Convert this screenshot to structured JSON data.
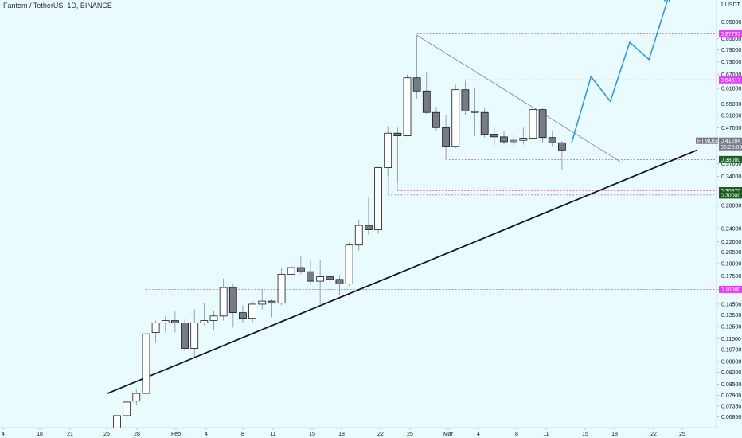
{
  "header": {
    "title": "Fantom / TetherUS, 1D, BINANCE"
  },
  "price_axis": {
    "currency": "1 USDT",
    "ticks": [
      "1.05000",
      "0.95000",
      "0.85000",
      "0.79000",
      "0.73000",
      "0.67000",
      "0.61000",
      "0.55000",
      "0.51000",
      "0.47000",
      "0.43000",
      "0.37000",
      "0.34000",
      "0.31000",
      "0.28000",
      "0.24000",
      "0.22000",
      "0.20500",
      "0.19000",
      "0.17500",
      "0.16000",
      "0.14500",
      "0.13500",
      "0.12500",
      "0.11500",
      "0.10700",
      "0.09900",
      "0.09200",
      "0.08500",
      "0.07900",
      "0.07350",
      "0.06850",
      "0.06370"
    ],
    "tags": [
      {
        "label": "0.87797",
        "color": "#e040fb"
      },
      {
        "label": "0.64617",
        "color": "#e040fb"
      },
      {
        "label": "FTMUSDT",
        "color": "#787b86"
      },
      {
        "label": "0.41284",
        "color": "#787b86"
      },
      {
        "label": "06:23:09",
        "color": "#787b86"
      },
      {
        "label": "0.38000",
        "color": "#1b5e20"
      },
      {
        "label": "0.30870",
        "color": "#1b5e20"
      },
      {
        "label": "0.30000",
        "color": "#1b5e20"
      },
      {
        "label": "0.16000",
        "color": "#e040fb"
      }
    ]
  },
  "time_axis": {
    "labels": [
      "4",
      "18",
      "21",
      "25",
      "28",
      "Feb",
      "4",
      "8",
      "11",
      "15",
      "18",
      "22",
      "25",
      "Mar",
      "4",
      "8",
      "11",
      "15",
      "18",
      "22",
      "25"
    ]
  },
  "chart_data": {
    "type": "candlestick",
    "symbol": "FTMUSDT",
    "exchange": "BINANCE",
    "interval": "1D",
    "y_scale": "log",
    "ylim": [
      0.0637,
      1.1
    ],
    "colors": {
      "up": "#ffffff",
      "down": "#787b86",
      "outline": "#131722"
    },
    "candles": [
      {
        "o": 0.0635,
        "h": 0.069,
        "l": 0.06,
        "c": 0.069
      },
      {
        "o": 0.069,
        "h": 0.0765,
        "l": 0.068,
        "c": 0.0755
      },
      {
        "o": 0.076,
        "h": 0.082,
        "l": 0.074,
        "c": 0.08
      },
      {
        "o": 0.08,
        "h": 0.12,
        "l": 0.079,
        "c": 0.119
      },
      {
        "o": 0.12,
        "h": 0.13,
        "l": 0.112,
        "c": 0.128
      },
      {
        "o": 0.128,
        "h": 0.134,
        "l": 0.12,
        "c": 0.13
      },
      {
        "o": 0.13,
        "h": 0.138,
        "l": 0.12,
        "c": 0.128
      },
      {
        "o": 0.128,
        "h": 0.131,
        "l": 0.106,
        "c": 0.108
      },
      {
        "o": 0.108,
        "h": 0.14,
        "l": 0.102,
        "c": 0.128
      },
      {
        "o": 0.128,
        "h": 0.146,
        "l": 0.126,
        "c": 0.13
      },
      {
        "o": 0.13,
        "h": 0.139,
        "l": 0.122,
        "c": 0.134
      },
      {
        "o": 0.134,
        "h": 0.172,
        "l": 0.13,
        "c": 0.162
      },
      {
        "o": 0.162,
        "h": 0.166,
        "l": 0.124,
        "c": 0.137
      },
      {
        "o": 0.137,
        "h": 0.144,
        "l": 0.128,
        "c": 0.132
      },
      {
        "o": 0.132,
        "h": 0.148,
        "l": 0.128,
        "c": 0.145
      },
      {
        "o": 0.145,
        "h": 0.16,
        "l": 0.14,
        "c": 0.148
      },
      {
        "o": 0.148,
        "h": 0.15,
        "l": 0.133,
        "c": 0.146
      },
      {
        "o": 0.146,
        "h": 0.184,
        "l": 0.144,
        "c": 0.177
      },
      {
        "o": 0.177,
        "h": 0.192,
        "l": 0.171,
        "c": 0.185
      },
      {
        "o": 0.185,
        "h": 0.2,
        "l": 0.177,
        "c": 0.18
      },
      {
        "o": 0.18,
        "h": 0.194,
        "l": 0.165,
        "c": 0.169
      },
      {
        "o": 0.169,
        "h": 0.195,
        "l": 0.145,
        "c": 0.174
      },
      {
        "o": 0.174,
        "h": 0.18,
        "l": 0.162,
        "c": 0.171
      },
      {
        "o": 0.171,
        "h": 0.176,
        "l": 0.154,
        "c": 0.166
      },
      {
        "o": 0.166,
        "h": 0.219,
        "l": 0.164,
        "c": 0.215
      },
      {
        "o": 0.215,
        "h": 0.255,
        "l": 0.207,
        "c": 0.245
      },
      {
        "o": 0.245,
        "h": 0.295,
        "l": 0.23,
        "c": 0.238
      },
      {
        "o": 0.238,
        "h": 0.365,
        "l": 0.232,
        "c": 0.36
      },
      {
        "o": 0.36,
        "h": 0.475,
        "l": 0.34,
        "c": 0.453
      },
      {
        "o": 0.453,
        "h": 0.47,
        "l": 0.325,
        "c": 0.445
      },
      {
        "o": 0.445,
        "h": 0.67,
        "l": 0.443,
        "c": 0.655
      },
      {
        "o": 0.655,
        "h": 0.87,
        "l": 0.57,
        "c": 0.6
      },
      {
        "o": 0.6,
        "h": 0.68,
        "l": 0.515,
        "c": 0.52
      },
      {
        "o": 0.52,
        "h": 0.54,
        "l": 0.46,
        "c": 0.47
      },
      {
        "o": 0.47,
        "h": 0.51,
        "l": 0.38,
        "c": 0.415
      },
      {
        "o": 0.415,
        "h": 0.625,
        "l": 0.41,
        "c": 0.605
      },
      {
        "o": 0.605,
        "h": 0.64,
        "l": 0.51,
        "c": 0.525
      },
      {
        "o": 0.525,
        "h": 0.615,
        "l": 0.445,
        "c": 0.52
      },
      {
        "o": 0.52,
        "h": 0.535,
        "l": 0.44,
        "c": 0.45
      },
      {
        "o": 0.45,
        "h": 0.47,
        "l": 0.415,
        "c": 0.442
      },
      {
        "o": 0.442,
        "h": 0.46,
        "l": 0.42,
        "c": 0.428
      },
      {
        "o": 0.428,
        "h": 0.45,
        "l": 0.415,
        "c": 0.432
      },
      {
        "o": 0.432,
        "h": 0.47,
        "l": 0.42,
        "c": 0.438
      },
      {
        "o": 0.438,
        "h": 0.56,
        "l": 0.435,
        "c": 0.53
      },
      {
        "o": 0.53,
        "h": 0.538,
        "l": 0.425,
        "c": 0.44
      },
      {
        "o": 0.44,
        "h": 0.46,
        "l": 0.415,
        "c": 0.425
      },
      {
        "o": 0.425,
        "h": 0.43,
        "l": 0.355,
        "c": 0.405
      }
    ],
    "support_trendline": {
      "from_candle": 0,
      "from_price": 0.08,
      "to_candle": 60,
      "to_price": 0.405
    },
    "resistance_trendline": {
      "from_candle": 31,
      "from_price": 0.87,
      "to_candle": 52,
      "to_price": 0.375
    },
    "projection_path": [
      {
        "candle": 47,
        "price": 0.425
      },
      {
        "candle": 49,
        "price": 0.66
      },
      {
        "candle": 51,
        "price": 0.56
      },
      {
        "candle": 53,
        "price": 0.83
      },
      {
        "candle": 55,
        "price": 0.74
      },
      {
        "candle": 57,
        "price": 1.12
      }
    ],
    "horizontal_levels": [
      {
        "price": 0.87797,
        "from_candle": 31
      },
      {
        "price": 0.64617,
        "from_candle": 36
      },
      {
        "price": 0.38,
        "from_candle": 34
      },
      {
        "price": 0.3087,
        "from_candle": 29
      },
      {
        "price": 0.3,
        "from_candle": 28
      },
      {
        "price": 0.16,
        "from_candle": 3
      }
    ],
    "last_price": 0.41284
  }
}
